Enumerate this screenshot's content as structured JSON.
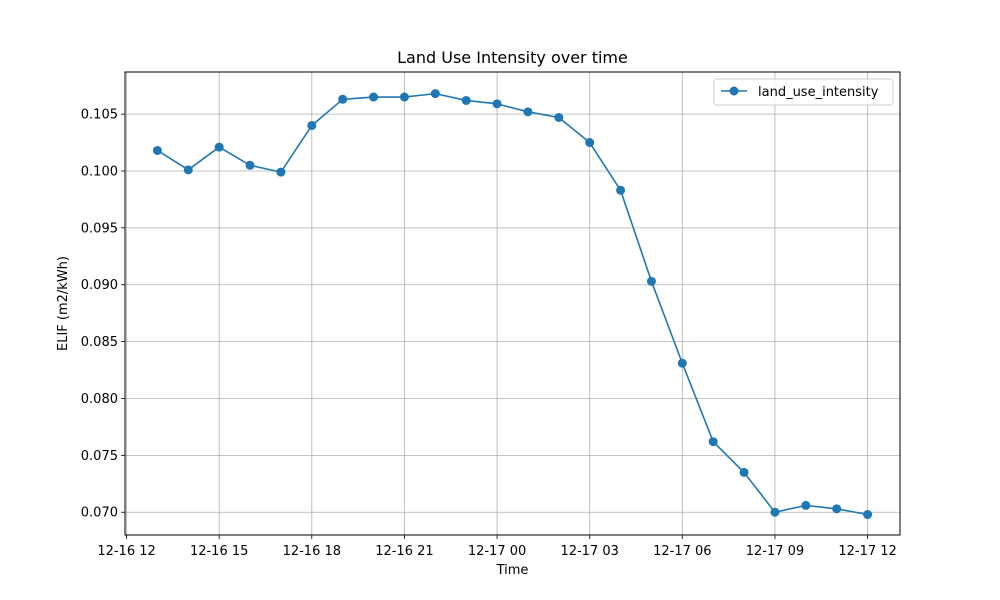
{
  "chart_data": {
    "type": "line",
    "title": "Land Use Intensity over time",
    "xlabel": "Time",
    "ylabel": "ELIF (m2/kWh)",
    "grid": true,
    "legend_position": "top-right",
    "x_ticks": [
      "2024-12-16 12:00",
      "2024-12-16 15:00",
      "2024-12-16 18:00",
      "2024-12-16 21:00",
      "2024-12-17 00:00",
      "2024-12-17 03:00",
      "2024-12-17 06:00",
      "2024-12-17 09:00",
      "2024-12-17 12:00"
    ],
    "x_tick_labels": [
      "12-16 12",
      "12-16 15",
      "12-16 18",
      "12-16 21",
      "12-17 00",
      "12-17 03",
      "12-17 06",
      "12-17 09",
      "12-17 12"
    ],
    "xlim": [
      "2024-12-16 11:57",
      "2024-12-17 13:03"
    ],
    "y_ticks": [
      0.07,
      0.075,
      0.08,
      0.085,
      0.09,
      0.095,
      0.1,
      0.105
    ],
    "y_tick_labels": [
      "0.070",
      "0.075",
      "0.080",
      "0.085",
      "0.090",
      "0.095",
      "0.100",
      "0.105"
    ],
    "ylim": [
      0.068,
      0.1087
    ],
    "series": [
      {
        "name": "land_use_intensity",
        "color": "#1f77b4",
        "marker": "circle",
        "x": [
          "2024-12-16 13:00",
          "2024-12-16 14:00",
          "2024-12-16 15:00",
          "2024-12-16 16:00",
          "2024-12-16 17:00",
          "2024-12-16 18:00",
          "2024-12-16 19:00",
          "2024-12-16 20:00",
          "2024-12-16 21:00",
          "2024-12-16 22:00",
          "2024-12-16 23:00",
          "2024-12-17 00:00",
          "2024-12-17 01:00",
          "2024-12-17 02:00",
          "2024-12-17 03:00",
          "2024-12-17 04:00",
          "2024-12-17 05:00",
          "2024-12-17 06:00",
          "2024-12-17 07:00",
          "2024-12-17 08:00",
          "2024-12-17 09:00",
          "2024-12-17 10:00",
          "2024-12-17 11:00",
          "2024-12-17 12:00"
        ],
        "values": [
          0.1018,
          0.1001,
          0.1021,
          0.1005,
          0.0999,
          0.104,
          0.1063,
          0.1065,
          0.1065,
          0.1068,
          0.1062,
          0.1059,
          0.1052,
          0.1047,
          0.1025,
          0.0983,
          0.0903,
          0.0831,
          0.0762,
          0.0735,
          0.07,
          0.0706,
          0.0703,
          0.0698
        ]
      }
    ]
  }
}
